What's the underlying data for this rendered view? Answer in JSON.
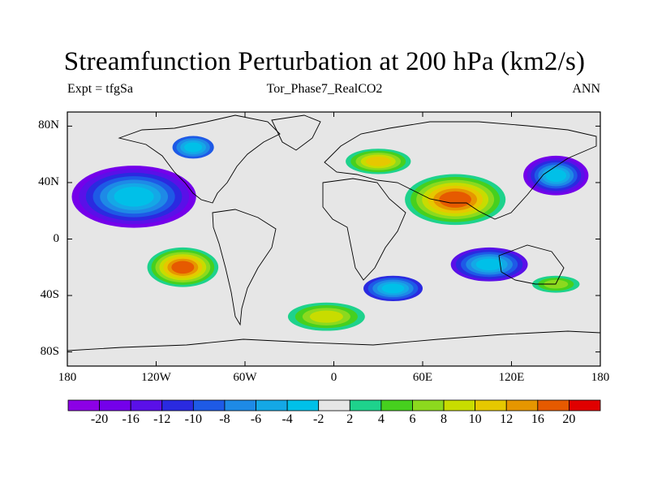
{
  "chart_data": {
    "type": "heatmap",
    "title": "Streamfunction Perturbation at 200 hPa (km2/s)",
    "subtitle_left": "Expt = tfgSa",
    "subtitle_center": "Tor_Phase7_RealCO2",
    "subtitle_right": "ANN",
    "xticks": [
      "180",
      "120W",
      "60W",
      "0",
      "60E",
      "120E",
      "180"
    ],
    "yticks": [
      "80N",
      "40N",
      "0",
      "40S",
      "80S"
    ],
    "xlim": [
      -180,
      180
    ],
    "ylim": [
      -90,
      90
    ],
    "colorbar_labels": [
      "-20",
      "-16",
      "-12",
      "-10",
      "-8",
      "-6",
      "-4",
      "-2",
      "2",
      "4",
      "6",
      "8",
      "10",
      "12",
      "16",
      "20"
    ],
    "colorbar_colors": [
      "#8c00e6",
      "#7400ea",
      "#5a10e8",
      "#2a2ae0",
      "#1e5ae6",
      "#1e8ae6",
      "#14a8e6",
      "#00c0e8",
      "#e6e6e6",
      "#1ed28c",
      "#46d01e",
      "#8cd91e",
      "#c8dc00",
      "#e6c800",
      "#e69600",
      "#e65a00",
      "#e00000"
    ],
    "features": [
      {
        "lon": -135,
        "lat": 30,
        "rx": 42,
        "ry": 22,
        "value": -16
      },
      {
        "lon": -95,
        "lat": 65,
        "rx": 14,
        "ry": 8,
        "value": -8
      },
      {
        "lon": -102,
        "lat": -20,
        "rx": 24,
        "ry": 14,
        "value": 18
      },
      {
        "lon": 82,
        "lat": 28,
        "rx": 34,
        "ry": 18,
        "value": 18
      },
      {
        "lon": 30,
        "lat": 55,
        "rx": 22,
        "ry": 9,
        "value": 11
      },
      {
        "lon": 150,
        "lat": 45,
        "rx": 22,
        "ry": 14,
        "value": -16
      },
      {
        "lon": 105,
        "lat": -18,
        "rx": 26,
        "ry": 12,
        "value": -12
      },
      {
        "lon": 40,
        "lat": -35,
        "rx": 20,
        "ry": 9,
        "value": -10
      },
      {
        "lon": -5,
        "lat": -55,
        "rx": 26,
        "ry": 10,
        "value": 8
      },
      {
        "lon": 150,
        "lat": -32,
        "rx": 16,
        "ry": 6,
        "value": 6
      }
    ]
  }
}
